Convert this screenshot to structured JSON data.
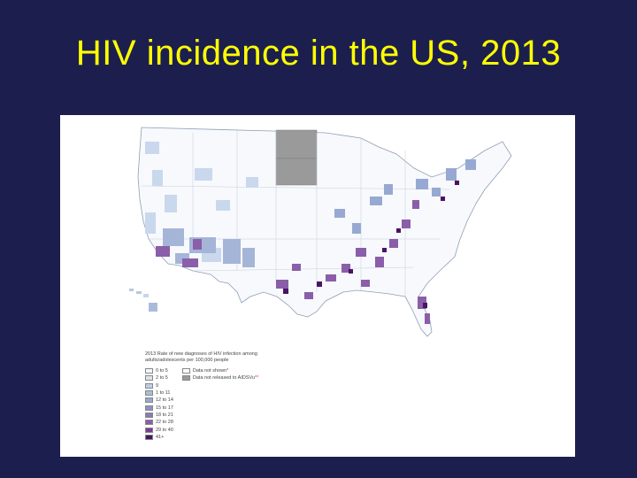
{
  "slide": {
    "title": "HIV incidence in the US, 2013"
  },
  "colors": {
    "background": "#1c1f4e",
    "title": "#ffff00",
    "no_data": "#9a9a9a"
  },
  "legend": {
    "title": "2013 Rate of new diagnoses of HIV infection among adults/adolescents per 100,000 people",
    "bins": [
      {
        "label": "0 to 5",
        "color": "#f3f6fb"
      },
      {
        "label": "2 to 5",
        "color": "#dbe5f2"
      },
      {
        "label": "9",
        "color": "#bcd0e8"
      },
      {
        "label": "1 to 11",
        "color": "#a7bddd"
      },
      {
        "label": "12 to 14",
        "color": "#97a9d2"
      },
      {
        "label": "15 to 17",
        "color": "#8a92c4"
      },
      {
        "label": "18 to 21",
        "color": "#8b7ab8"
      },
      {
        "label": "22 to 28",
        "color": "#8a5ea9"
      },
      {
        "label": "29 to 40",
        "color": "#7a3e96"
      },
      {
        "label": "41+",
        "color": "#4a1466"
      }
    ],
    "other": [
      {
        "label": "Data not shown",
        "note": "*",
        "color": "#ffffff"
      },
      {
        "label": "Data not released to AIDSVu",
        "note": "**",
        "color": "#9a9a9a"
      }
    ]
  }
}
